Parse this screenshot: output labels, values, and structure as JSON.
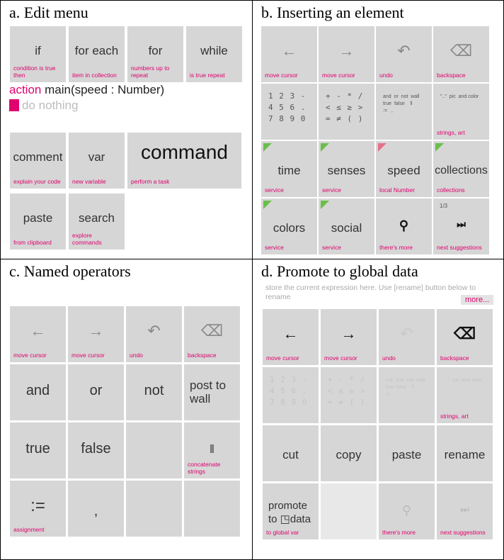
{
  "panels": {
    "a": {
      "title": "a. Edit menu",
      "tiles": [
        {
          "main": "if",
          "sub": "condition is true then"
        },
        {
          "main": "for each",
          "sub": "item in collection"
        },
        {
          "main": "for",
          "sub": "numbers up to repeat"
        },
        {
          "main": "while",
          "sub": "is true repeat"
        },
        {
          "main": "comment",
          "sub": "explain your code"
        },
        {
          "main": "var",
          "sub": "new variable"
        },
        {
          "main": "command",
          "sub": "perform a task"
        },
        {
          "main": "paste",
          "sub": "from clipboard"
        },
        {
          "main": "search",
          "sub": "explore commands"
        }
      ],
      "code_keyword": "action",
      "code_rest": " main(speed : Number)",
      "placeholder": "do nothing"
    },
    "b": {
      "title": "b. Inserting an element",
      "tiles": [
        {
          "icon": "←",
          "sub": "move cursor"
        },
        {
          "icon": "→",
          "sub": "move cursor"
        },
        {
          "icon": "↶",
          "sub": "undo"
        },
        {
          "icon": "⌫",
          "sub": "backspace"
        },
        {
          "grid": "1 2 3 -\n4 5 6 .\n7 8 9 0"
        },
        {
          "grid": "+ - * /\n< ≤ ≥ >\n= ≠ ( )"
        },
        {
          "grid": "and  or  not  wall\ntrue  false    ‖\n:=   ,"
        },
        {
          "grid": "\"..\"  pic  and color",
          "sub": "strings, art"
        },
        {
          "main": "time",
          "sub": "service"
        },
        {
          "main": "senses",
          "sub": "service"
        },
        {
          "main": "speed",
          "sub": "local Number"
        },
        {
          "main": "collections",
          "sub": "collections"
        },
        {
          "main": "colors",
          "sub": "service"
        },
        {
          "main": "social",
          "sub": "service"
        },
        {
          "icon": "⚲",
          "sub": "there's more"
        },
        {
          "corner": "1/3",
          "icon": "⏭",
          "sub": "next suggestions"
        }
      ]
    },
    "c": {
      "title": "c. Named operators",
      "tiles": [
        {
          "icon": "←",
          "sub": "move cursor"
        },
        {
          "icon": "→",
          "sub": "move cursor"
        },
        {
          "icon": "↶",
          "sub": "undo"
        },
        {
          "icon": "⌫",
          "sub": "backspace"
        },
        {
          "main": "and"
        },
        {
          "main": "or"
        },
        {
          "main": "not"
        },
        {
          "main": "post to wall"
        },
        {
          "main": "true"
        },
        {
          "main": "false"
        },
        {
          "main": ""
        },
        {
          "main": "‖",
          "sub": "concatenate strings"
        },
        {
          "main": ":=",
          "sub": "assignment"
        },
        {
          "main": ","
        },
        {
          "main": ""
        },
        {
          "main": ""
        }
      ]
    },
    "d": {
      "title": "d. Promote to global data",
      "hint": "store the current expression here. Use [rename] button below to rename",
      "more": "more...",
      "tiles": [
        {
          "icon": "←",
          "sub": "move cursor"
        },
        {
          "icon": "→",
          "sub": "move cursor"
        },
        {
          "icon": "↶",
          "sub": "undo"
        },
        {
          "icon": "⌫",
          "sub": "backspace"
        },
        {
          "grid": "1 2 3 -\n4 5 6 .\n7 8 9 0"
        },
        {
          "grid": "+ - * /\n< ≤ ≥ >\n= ≠ ( )"
        },
        {
          "grid": "not  true  not  wall\ntrue false    ‖\n:=   ,"
        },
        {
          "grid": "\"..\"  pic  and color",
          "sub": "strings, art"
        },
        {
          "main": "cut"
        },
        {
          "main": "copy"
        },
        {
          "main": "paste"
        },
        {
          "main": "rename"
        },
        {
          "main": "promote to ◳data",
          "sub": "to global var"
        },
        {
          "main": ""
        },
        {
          "icon": "⚲",
          "sub": "there's more"
        },
        {
          "icon": "⏭",
          "sub": "next suggestions"
        }
      ]
    }
  }
}
